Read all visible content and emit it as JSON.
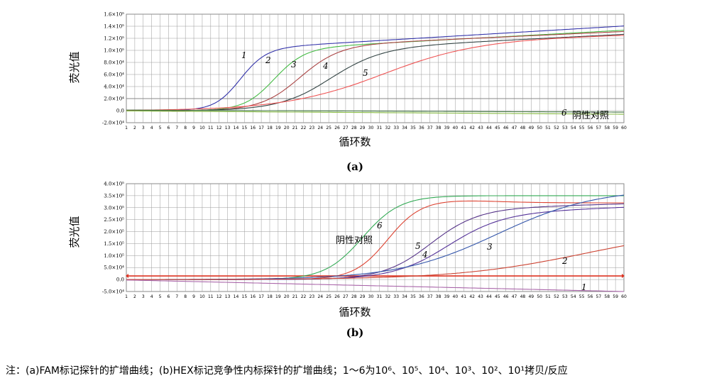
{
  "chart_data": [
    {
      "panel": "(a)",
      "type": "line",
      "ylabel": "荧光值",
      "xlabel": "循环数",
      "x_ticks": [
        "1",
        "2",
        "3",
        "4",
        "5",
        "6",
        "7",
        "8",
        "9",
        "10",
        "11",
        "12",
        "13",
        "14",
        "15",
        "16",
        "17",
        "18",
        "19",
        "20",
        "21",
        "22",
        "23",
        "24",
        "25",
        "26",
        "27",
        "28",
        "29",
        "30",
        "31",
        "32",
        "33",
        "34",
        "35",
        "36",
        "37",
        "38",
        "39",
        "40",
        "41",
        "42",
        "43",
        "44",
        "45",
        "46",
        "47",
        "48",
        "49",
        "50",
        "51",
        "52",
        "53",
        "54",
        "55",
        "56",
        "57",
        "58",
        "59",
        "60"
      ],
      "y_ticks": [
        "1.6×10⁵",
        "1.4×10⁵",
        "1.2×10⁵",
        "1.0×10⁵",
        "8.0×10⁴",
        "6.0×10⁴",
        "4.0×10⁴",
        "2.0×10⁴",
        "0.0",
        "-2.0×10⁴"
      ],
      "y_tick_values": [
        160000,
        140000,
        120000,
        100000,
        80000,
        60000,
        40000,
        20000,
        0,
        -20000
      ],
      "xlim": [
        1,
        60
      ],
      "ylim": [
        -20000,
        160000
      ],
      "grid": true,
      "threshold": 20000,
      "series": [
        {
          "label": "1",
          "color": "#3333aa",
          "ct": 11.5,
          "plateau": 100000,
          "k": 0.65,
          "tail": 50000
        },
        {
          "label": "2",
          "color": "#44bb44",
          "ct": 15.5,
          "plateau": 100000,
          "k": 0.55,
          "tail": 45000
        },
        {
          "label": "3",
          "color": "#aa4444",
          "ct": 18.5,
          "plateau": 105000,
          "k": 0.42,
          "tail": 38000
        },
        {
          "label": "4",
          "color": "#334444",
          "ct": 22.0,
          "plateau": 100000,
          "k": 0.32,
          "tail": 42000
        },
        {
          "label": "5",
          "color": "#ee5555",
          "ct": 28.0,
          "plateau": 115000,
          "k": 0.17,
          "tail": 20000
        },
        {
          "label": "6",
          "color": "#447744",
          "flat": true,
          "start": 1000,
          "end": -2500
        },
        {
          "label": "",
          "color": "#88bb44",
          "flat": true,
          "start": -500,
          "end": -6000
        }
      ],
      "curve_labels": [
        "1",
        "2",
        "3",
        "4",
        "5",
        "6"
      ],
      "annotation": "阴性对照"
    },
    {
      "panel": "(b)",
      "type": "line",
      "ylabel": "荧光值",
      "xlabel": "循环数",
      "x_ticks": [
        "1",
        "2",
        "3",
        "4",
        "5",
        "6",
        "7",
        "8",
        "9",
        "10",
        "11",
        "12",
        "13",
        "14",
        "15",
        "16",
        "17",
        "18",
        "19",
        "20",
        "21",
        "22",
        "23",
        "24",
        "25",
        "26",
        "27",
        "28",
        "29",
        "30",
        "31",
        "32",
        "33",
        "34",
        "35",
        "36",
        "37",
        "38",
        "39",
        "40",
        "41",
        "42",
        "43",
        "44",
        "45",
        "46",
        "47",
        "48",
        "49",
        "50",
        "51",
        "52",
        "53",
        "54",
        "55",
        "56",
        "57",
        "58",
        "59",
        "60"
      ],
      "y_ticks": [
        "4.0×10⁵",
        "3.5×10⁵",
        "3.0×10⁵",
        "2.5×10⁵",
        "2.0×10⁵",
        "1.5×10⁵",
        "1.0×10⁵",
        "5.0×10⁴",
        "0.0",
        "-5.0×10⁴"
      ],
      "y_tick_values": [
        400000,
        350000,
        300000,
        250000,
        200000,
        150000,
        100000,
        50000,
        0,
        -50000
      ],
      "xlim": [
        1,
        60
      ],
      "ylim": [
        -50000,
        400000
      ],
      "grid": true,
      "threshold": 15000,
      "series": [
        {
          "label": "阴性对照",
          "color": "#33aa55",
          "ct": 26.0,
          "plateau": 350000,
          "k": 0.45
        },
        {
          "label": "6",
          "color": "#dd4433",
          "ct": 29.0,
          "plateau": 335000,
          "k": 0.5,
          "bump": true
        },
        {
          "label": "5",
          "color": "#553388",
          "ct": 34.0,
          "plateau": 290000,
          "k": 0.35,
          "tail": 60000
        },
        {
          "label": "4",
          "color": "#553399",
          "ct": 36.0,
          "plateau": 270000,
          "k": 0.3,
          "tail": 80000
        },
        {
          "label": "3",
          "color": "#3355aa",
          "ct": 42.0,
          "plateau": 380000,
          "k": 0.17
        },
        {
          "label": "2",
          "color": "#cc4433",
          "ct": 52.5,
          "plateau": 220000,
          "k": 0.13
        },
        {
          "label": "1",
          "color": "#aa66aa",
          "flat": true,
          "start": -2000,
          "end": -50000
        }
      ],
      "curve_labels": [
        "阴性对照",
        "6",
        "5",
        "4",
        "3",
        "2",
        "1"
      ]
    }
  ],
  "panel_a_label": "(a)",
  "panel_b_label": "(b)",
  "note_text": "注：(a)FAM标记探针的扩增曲线；(b)HEX标记竞争性内标探针的扩增曲线；1～6为10⁶、10⁵、10⁴、10³、10²、10¹拷贝/反应"
}
